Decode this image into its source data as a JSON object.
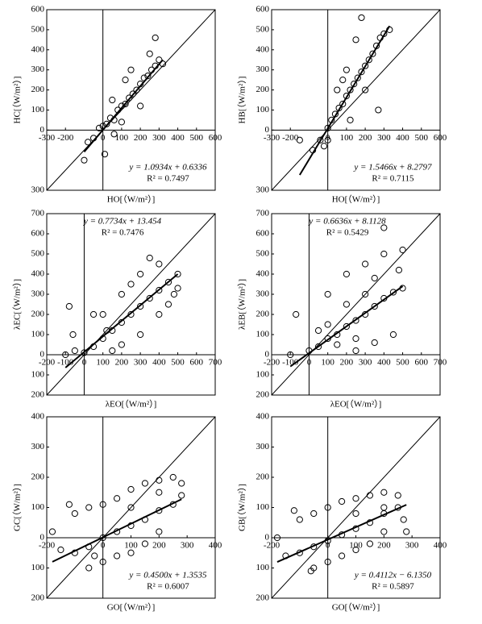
{
  "chart_data": [
    {
      "type": "scatter",
      "xlabel": "HO[（W/m²）]",
      "ylabel": "HC[（W/m²）]",
      "xlim": [
        -300,
        600
      ],
      "ylim": [
        -300,
        600
      ],
      "xticks": [
        -300,
        -200,
        0,
        100,
        200,
        300,
        400,
        500,
        600
      ],
      "yticks": [
        600,
        500,
        400,
        300,
        200,
        100,
        0,
        {
          "value": -300,
          "label": "300"
        }
      ],
      "x": [
        -80,
        -50,
        -20,
        0,
        20,
        40,
        60,
        80,
        100,
        120,
        140,
        160,
        180,
        200,
        220,
        240,
        260,
        280,
        300,
        50,
        150,
        100,
        200,
        250,
        -100,
        10,
        320,
        280,
        120,
        60
      ],
      "y": [
        -60,
        -40,
        10,
        20,
        30,
        60,
        50,
        100,
        120,
        130,
        160,
        180,
        200,
        230,
        260,
        270,
        300,
        320,
        350,
        150,
        300,
        40,
        120,
        380,
        -150,
        -120,
        330,
        460,
        250,
        -20
      ],
      "fit": {
        "slope": 1.0934,
        "intercept": 0.6336
      },
      "equation": "y = 1.0934x + 0.6336",
      "r2_label": "R² = 0.7497",
      "annotation_corner": "bottom-right"
    },
    {
      "type": "scatter",
      "xlabel": "HO[（W/m²）]",
      "ylabel": "HB[（W/m²）]",
      "xlim": [
        -300,
        600
      ],
      "ylim": [
        -300,
        600
      ],
      "xticks": [
        -300,
        -200,
        0,
        100,
        200,
        300,
        400,
        500,
        600
      ],
      "yticks": [
        600,
        500,
        400,
        300,
        200,
        100,
        0,
        {
          "value": -300,
          "label": "300"
        }
      ],
      "x": [
        -80,
        -40,
        0,
        20,
        40,
        60,
        80,
        100,
        120,
        140,
        160,
        180,
        200,
        220,
        240,
        260,
        280,
        300,
        330,
        100,
        150,
        200,
        50,
        -20,
        -150,
        270,
        180,
        120,
        80,
        0
      ],
      "y": [
        -100,
        -50,
        10,
        50,
        80,
        110,
        130,
        170,
        200,
        230,
        260,
        290,
        320,
        350,
        380,
        420,
        460,
        480,
        500,
        300,
        450,
        200,
        200,
        -80,
        -50,
        100,
        560,
        50,
        250,
        -50
      ],
      "fit": {
        "slope": 1.5466,
        "intercept": 8.2797
      },
      "equation": "y = 1.5466x + 8.2797",
      "r2_label": "R² = 0.7115",
      "annotation_corner": "bottom-right"
    },
    {
      "type": "scatter",
      "xlabel": "λEO[（W/m²）]",
      "ylabel": "λEC[（W/m²）]",
      "xlim": [
        -200,
        700
      ],
      "ylim": [
        -200,
        700
      ],
      "xticks": [
        -200,
        -100,
        0,
        100,
        200,
        300,
        400,
        500,
        600,
        700
      ],
      "yticks": [
        700,
        600,
        500,
        400,
        300,
        200,
        100,
        0,
        {
          "value": -100,
          "label": "100"
        },
        {
          "value": -200,
          "label": "200"
        }
      ],
      "x": [
        -100,
        -50,
        0,
        50,
        100,
        150,
        200,
        250,
        300,
        350,
        400,
        450,
        500,
        100,
        200,
        300,
        400,
        450,
        200,
        300,
        -80,
        50,
        150,
        350,
        480,
        250,
        120,
        -60,
        400,
        500
      ],
      "y": [
        0,
        20,
        10,
        40,
        80,
        120,
        160,
        200,
        240,
        280,
        320,
        360,
        400,
        200,
        300,
        400,
        450,
        250,
        50,
        100,
        240,
        200,
        20,
        480,
        300,
        350,
        120,
        100,
        200,
        330
      ],
      "fit": {
        "slope": 0.7734,
        "intercept": 13.454
      },
      "equation": "y = 0.7734x + 13.454",
      "r2_label": "R² = 0.7476",
      "annotation_corner": "top"
    },
    {
      "type": "scatter",
      "xlabel": "λEO[（W/m²）]",
      "ylabel": "λEB[（W/m²）]",
      "xlim": [
        -200,
        700
      ],
      "ylim": [
        -200,
        700
      ],
      "xticks": [
        -200,
        -100,
        0,
        100,
        200,
        300,
        400,
        500,
        600,
        700
      ],
      "yticks": [
        700,
        600,
        500,
        400,
        300,
        200,
        100,
        0,
        {
          "value": -100,
          "label": "100"
        },
        {
          "value": -200,
          "label": "200"
        }
      ],
      "x": [
        -100,
        0,
        50,
        100,
        150,
        200,
        250,
        300,
        350,
        400,
        450,
        500,
        100,
        200,
        300,
        400,
        500,
        150,
        250,
        350,
        450,
        300,
        200,
        -70,
        400,
        250,
        100,
        480,
        350,
        50
      ],
      "y": [
        0,
        20,
        40,
        80,
        100,
        140,
        170,
        200,
        240,
        280,
        310,
        330,
        300,
        400,
        450,
        500,
        520,
        50,
        80,
        60,
        100,
        300,
        250,
        200,
        630,
        20,
        150,
        420,
        380,
        120
      ],
      "fit": {
        "slope": 0.6636,
        "intercept": 8.1128
      },
      "equation": "y = 0.6636x + 8.1128",
      "r2_label": "R² = 0.5429",
      "annotation_corner": "top"
    },
    {
      "type": "scatter",
      "xlabel": "GO[（W/m²）]",
      "ylabel": "GC[（W/m²）]",
      "xlim": [
        -200,
        400
      ],
      "ylim": [
        -200,
        400
      ],
      "xticks": [
        -200,
        0,
        100,
        200,
        300,
        400
      ],
      "yticks": [
        400,
        300,
        200,
        100,
        0,
        {
          "value": -100,
          "label": "100"
        },
        {
          "value": -200,
          "label": "200"
        }
      ],
      "x": [
        -150,
        -100,
        -50,
        0,
        50,
        100,
        150,
        200,
        250,
        280,
        -100,
        -50,
        0,
        50,
        100,
        150,
        200,
        250,
        -50,
        0,
        50,
        100,
        150,
        200,
        -180,
        -120,
        -30,
        100,
        200,
        280
      ],
      "y": [
        -40,
        -50,
        -30,
        0,
        20,
        40,
        60,
        90,
        110,
        140,
        80,
        100,
        110,
        130,
        160,
        180,
        190,
        200,
        -100,
        -80,
        -60,
        -50,
        -20,
        20,
        20,
        110,
        -60,
        100,
        150,
        180
      ],
      "fit": {
        "slope": 0.45,
        "intercept": 1.3535
      },
      "equation": "y = 0.4500x + 1.3535",
      "r2_label": "R² = 0.6007",
      "annotation_corner": "bottom-right"
    },
    {
      "type": "scatter",
      "xlabel": "GO[（W/m²）]",
      "ylabel": "GB[（W/m²）]",
      "xlim": [
        -200,
        400
      ],
      "ylim": [
        -200,
        400
      ],
      "xticks": [
        -200,
        0,
        100,
        200,
        300,
        400
      ],
      "yticks": [
        400,
        300,
        200,
        100,
        0,
        {
          "value": -100,
          "label": "100"
        },
        {
          "value": -200,
          "label": "200"
        }
      ],
      "x": [
        -150,
        -100,
        -50,
        0,
        50,
        100,
        150,
        200,
        250,
        270,
        -100,
        -50,
        0,
        50,
        100,
        150,
        200,
        250,
        -50,
        0,
        50,
        100,
        150,
        200,
        -180,
        -120,
        -60,
        100,
        200,
        280
      ],
      "y": [
        -60,
        -50,
        -30,
        -10,
        10,
        30,
        50,
        80,
        100,
        60,
        60,
        80,
        100,
        120,
        130,
        140,
        150,
        140,
        -100,
        -80,
        -60,
        -40,
        -20,
        20,
        0,
        90,
        -110,
        80,
        100,
        20
      ],
      "fit": {
        "slope": 0.4112,
        "intercept": -6.135
      },
      "equation": "y = 0.4112x − 6.1350",
      "r2_label": "R² = 0.5897",
      "annotation_corner": "bottom-right"
    }
  ]
}
